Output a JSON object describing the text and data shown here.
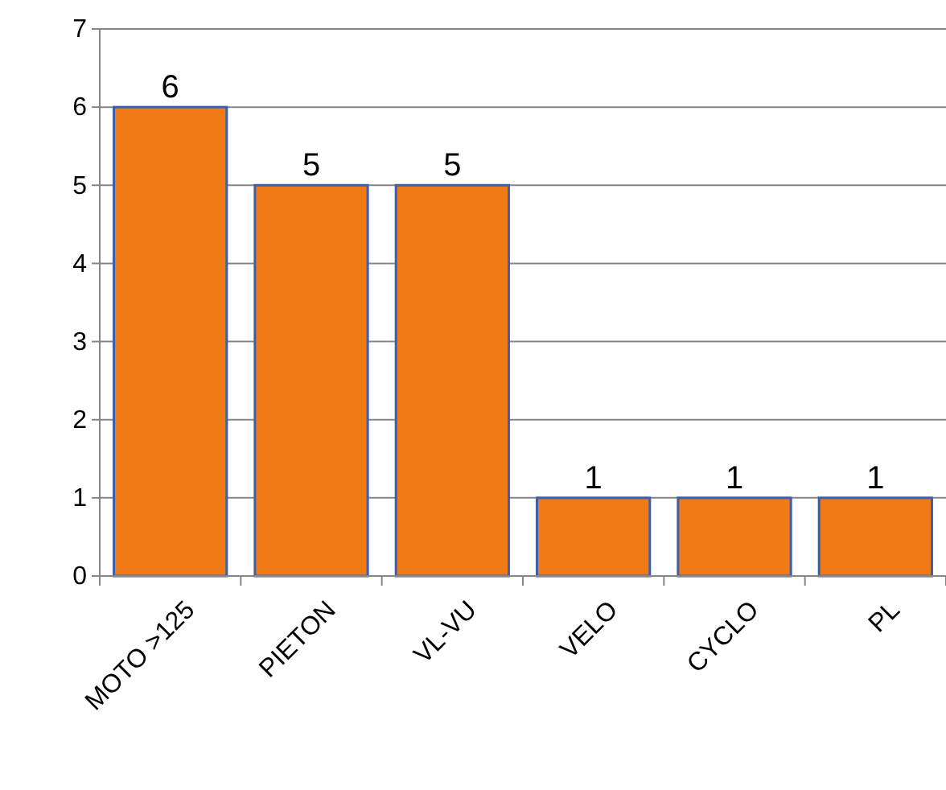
{
  "chart_data": {
    "type": "bar",
    "categories": [
      "MOTO >125",
      "PIETON",
      "VL-VU",
      "VELO",
      "CYCLO",
      "PL"
    ],
    "values": [
      6,
      5,
      5,
      1,
      1,
      1
    ],
    "color": "#f07a14",
    "ylim": [
      0,
      7
    ],
    "yticks": [
      0,
      1,
      2,
      3,
      4,
      5,
      6,
      7
    ],
    "grid": "y",
    "data_labels": true
  }
}
